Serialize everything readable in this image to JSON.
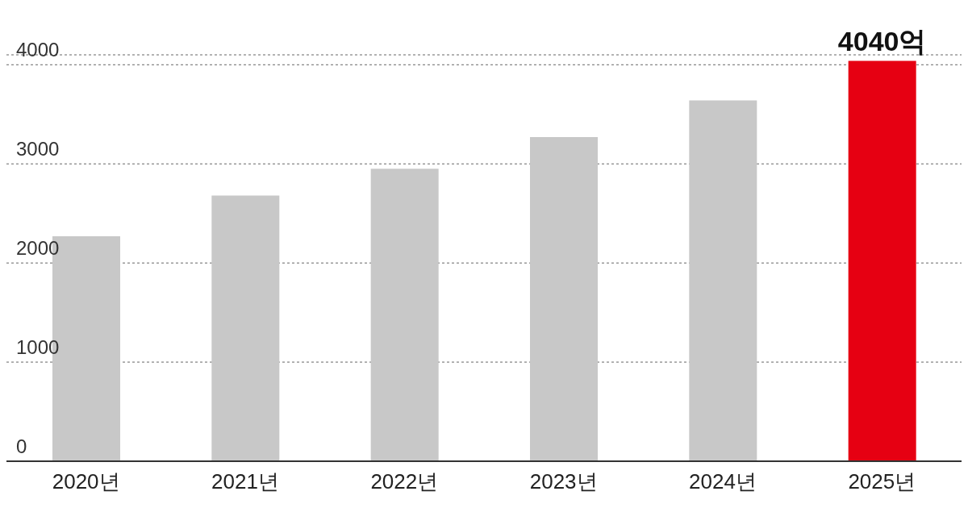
{
  "chart_data": {
    "type": "bar",
    "categories": [
      "2020년",
      "2021년",
      "2022년",
      "2023년",
      "2024년",
      "2025년"
    ],
    "values": [
      2270,
      2680,
      2950,
      3270,
      3640,
      4040
    ],
    "colors": [
      "#c8c8c8",
      "#c8c8c8",
      "#c8c8c8",
      "#c8c8c8",
      "#c8c8c8",
      "#e60012"
    ],
    "value_labels": [
      null,
      null,
      null,
      null,
      null,
      "4040억"
    ],
    "ylim": [
      0,
      4100
    ],
    "yticks": [
      0,
      1000,
      2000,
      3000,
      4000
    ],
    "grid": "y"
  }
}
